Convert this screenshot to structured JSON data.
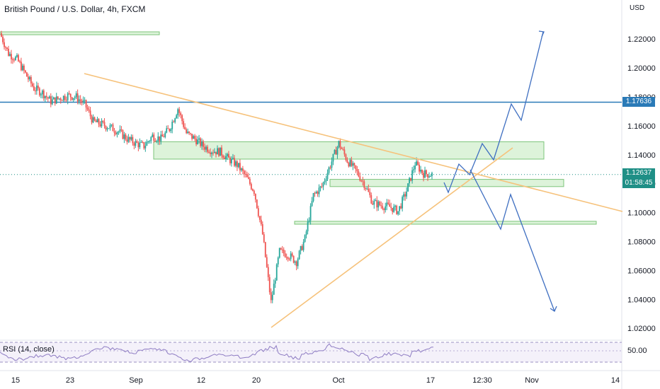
{
  "header": {
    "title": "British Pound / U.S. Dollar, 4h, FXCM",
    "currency": "USD"
  },
  "indicator": {
    "label": "RSI (14, close)",
    "level_label": "50.00"
  },
  "price_tags": {
    "line_price": "1.17636",
    "current_price": "1.12637",
    "countdown": "01:58:45"
  },
  "colors": {
    "up": "#26a69a",
    "down": "#ef5350",
    "zone_fill": "#d1efcd",
    "zone_border": "#7cc47a",
    "trendline": "#f6c27b",
    "projection": "#3f6fc1",
    "horizontal_line": "#2a7ab7",
    "rsi": "#8e7cc3",
    "current_tag": "#1f8f86"
  },
  "chart_data": {
    "type": "candlestick",
    "title": "British Pound / U.S. Dollar, 4h, FXCM",
    "y_axis": {
      "unit": "USD",
      "ticks": [
        "1.22000",
        "1.20000",
        "1.18000",
        "1.16000",
        "1.14000",
        "1.12000",
        "1.10000",
        "1.08000",
        "1.06000",
        "1.04000",
        "1.02000"
      ],
      "range": [
        1.013,
        1.238
      ]
    },
    "x_axis": {
      "ticks": [
        "15",
        "23",
        "Sep",
        "12",
        "20",
        "Oct",
        "17",
        "12:30",
        "Nov",
        "14"
      ]
    },
    "price_series": [
      [
        "15",
        1.224
      ],
      [
        "16",
        1.21
      ],
      [
        "17",
        1.206
      ],
      [
        "18",
        1.196
      ],
      [
        "19",
        1.186
      ],
      [
        "20",
        1.183
      ],
      [
        "22",
        1.177
      ],
      [
        "23",
        1.179
      ],
      [
        "24",
        1.181
      ],
      [
        "25",
        1.18
      ],
      [
        "26",
        1.175
      ],
      [
        "29",
        1.163
      ],
      [
        "30",
        1.161
      ],
      [
        "31",
        1.159
      ],
      [
        "Sep",
        1.156
      ],
      [
        "2",
        1.151
      ],
      [
        "5",
        1.148
      ],
      [
        "6",
        1.146
      ],
      [
        "7",
        1.153
      ],
      [
        "8",
        1.151
      ],
      [
        "9",
        1.158
      ],
      [
        "12",
        1.172
      ],
      [
        "13",
        1.155
      ],
      [
        "14",
        1.151
      ],
      [
        "15",
        1.146
      ],
      [
        "16",
        1.143
      ],
      [
        "19",
        1.142
      ],
      [
        "20",
        1.137
      ],
      [
        "21",
        1.133
      ],
      [
        "22",
        1.125
      ],
      [
        "23",
        1.115
      ],
      [
        "24",
        1.085
      ],
      [
        "26",
        1.038
      ],
      [
        "26b",
        1.073
      ],
      [
        "27",
        1.071
      ],
      [
        "28",
        1.066
      ],
      [
        "29",
        1.082
      ],
      [
        "30",
        1.112
      ],
      [
        "Oct",
        1.118
      ],
      [
        "3",
        1.133
      ],
      [
        "4",
        1.148
      ],
      [
        "5",
        1.136
      ],
      [
        "6",
        1.129
      ],
      [
        "7",
        1.12
      ],
      [
        "10",
        1.107
      ],
      [
        "11",
        1.105
      ],
      [
        "12",
        1.104
      ],
      [
        "13",
        1.101
      ],
      [
        "14",
        1.115
      ],
      [
        "15",
        1.134
      ],
      [
        "16",
        1.127
      ],
      [
        "17",
        1.1264
      ]
    ],
    "horizontal_line": 1.17636,
    "current_price": 1.12637,
    "zones": [
      {
        "from": "15",
        "to": "Sep",
        "low": 1.223,
        "high": 1.225
      },
      {
        "from": "Sep",
        "to": "Nov",
        "low": 1.137,
        "high": 1.149
      },
      {
        "from": "Oct",
        "to": "Nov",
        "low": 1.118,
        "high": 1.123
      },
      {
        "from": "26",
        "to": "Nov",
        "low": 1.092,
        "high": 1.094
      }
    ],
    "series": [
      {
        "name": "RSI (14, close)",
        "level": 50.0
      }
    ]
  }
}
